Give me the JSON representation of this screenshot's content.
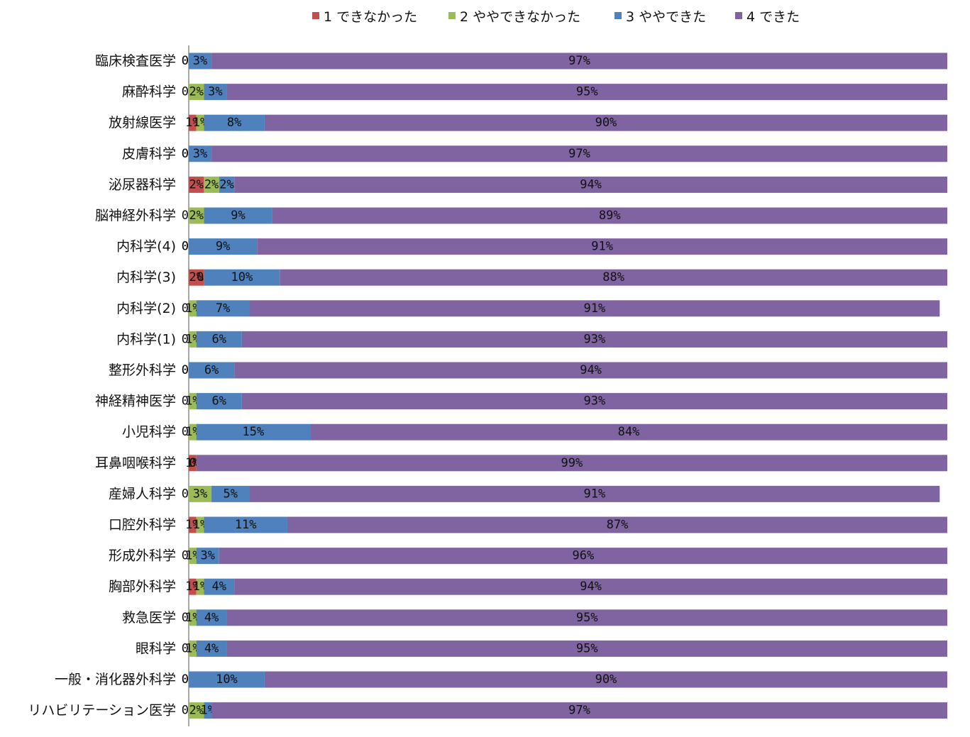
{
  "chart_data": {
    "type": "bar",
    "orientation": "horizontal",
    "stacked": true,
    "percent_stacked": true,
    "legend_position": "top",
    "grid": false,
    "xlim": [
      0,
      100
    ],
    "series": [
      {
        "name": "1 できなかった",
        "color": "#C0504D",
        "values": [
          0,
          0,
          1,
          0,
          2,
          0,
          0,
          2,
          0,
          0,
          0,
          0,
          0,
          1,
          0,
          1,
          0,
          1,
          0,
          0,
          0,
          0
        ],
        "labels": [
          "0%",
          "0%",
          "1%",
          "0%",
          "2%",
          "0%",
          "0%",
          "2%",
          "0%",
          "0%",
          "0%",
          "0%",
          "0%",
          "1%",
          "0%",
          "1%",
          "0%",
          "1%",
          "0%",
          "0%",
          "0%",
          "0%"
        ]
      },
      {
        "name": "2 ややできなかった",
        "color": "#9BBB59",
        "values": [
          0,
          2,
          1,
          0,
          2,
          2,
          0,
          0,
          1,
          1,
          0,
          1,
          1,
          0,
          3,
          1,
          1,
          1,
          1,
          1,
          0,
          2
        ],
        "labels": [
          "0%",
          "2%",
          "1%",
          "0%",
          "2%",
          "2%",
          "0%",
          "0%",
          "1%",
          "1%",
          "0%",
          "1%",
          "1%",
          "0%",
          "3%",
          "1%",
          "1%",
          "1%",
          "1%",
          "1%",
          "0%",
          "2%"
        ]
      },
      {
        "name": "3 ややできた",
        "color": "#4F81BD",
        "values": [
          3,
          3,
          8,
          3,
          2,
          9,
          9,
          10,
          7,
          6,
          6,
          6,
          15,
          0,
          5,
          11,
          3,
          4,
          4,
          4,
          10,
          1
        ],
        "labels": [
          "3%",
          "3%",
          "8%",
          "3%",
          "2%",
          "9%",
          "9%",
          "10%",
          "7%",
          "6%",
          "6%",
          "6%",
          "15%",
          "0%",
          "5%",
          "11%",
          "3%",
          "4%",
          "4%",
          "4%",
          "10%",
          "1%"
        ]
      },
      {
        "name": "4 できた",
        "color": "#8064A2",
        "values": [
          97,
          95,
          90,
          97,
          94,
          89,
          91,
          88,
          91,
          93,
          94,
          93,
          84,
          99,
          91,
          87,
          96,
          94,
          95,
          95,
          90,
          97
        ],
        "labels": [
          "97%",
          "95%",
          "90%",
          "97%",
          "94%",
          "89%",
          "91%",
          "88%",
          "91%",
          "93%",
          "94%",
          "93%",
          "84%",
          "99%",
          "91%",
          "87%",
          "96%",
          "94%",
          "95%",
          "95%",
          "90%",
          "97%"
        ]
      }
    ],
    "categories": [
      "臨床検査医学",
      "麻酔科学",
      "放射線医学",
      "皮膚科学",
      "泌尿器科学",
      "脳神経外科学",
      "内科学(4)",
      "内科学(3)",
      "内科学(2)",
      "内科学(1)",
      "整形外科学",
      "神経精神医学",
      "小児科学",
      "耳鼻咽喉科学",
      "産婦人科学",
      "口腔外科学",
      "形成外科学",
      "胸部外科学",
      "救急医学",
      "眼科学",
      "一般・消化器外科学",
      "リハビリテーション医学"
    ],
    "title": "",
    "xlabel": "",
    "ylabel": ""
  }
}
